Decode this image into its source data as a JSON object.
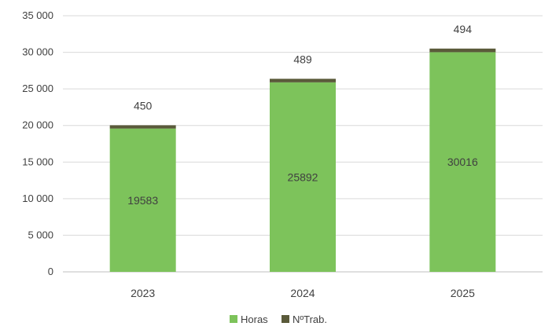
{
  "chart_data": {
    "type": "bar",
    "stacked": true,
    "categories": [
      "2023",
      "2024",
      "2025"
    ],
    "series": [
      {
        "name": "Horas",
        "values": [
          19583,
          25892,
          30016
        ],
        "color": "#7dc35b"
      },
      {
        "name": "NºTrab.",
        "values": [
          450,
          489,
          494
        ],
        "color": "#5a5a3a"
      }
    ],
    "segment_labels": [
      "19583",
      "25892",
      "30016"
    ],
    "top_labels": [
      "450",
      "489",
      "494"
    ],
    "ylim": [
      0,
      35000
    ],
    "yticks": [
      0,
      5000,
      10000,
      15000,
      20000,
      25000,
      30000,
      35000
    ],
    "ytick_labels": [
      "0",
      "5 000",
      "10 000",
      "15 000",
      "20 000",
      "25 000",
      "30 000",
      "35 000"
    ],
    "grid": true,
    "legend_position": "bottom"
  }
}
